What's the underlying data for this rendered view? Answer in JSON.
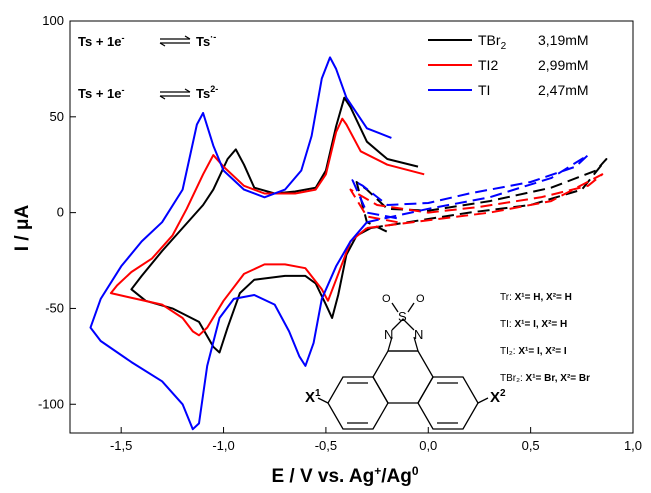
{
  "chart_data": {
    "type": "line",
    "title": "",
    "xlabel": "E / V vs. Ag+/Ag0",
    "xlabel_parts": {
      "pre": "E / V vs. Ag",
      "sup1": "+",
      "mid": "/Ag",
      "sup2": "0"
    },
    "ylabel": "I / μA",
    "xlim": [
      -1.75,
      1.0
    ],
    "ylim": [
      -115,
      100
    ],
    "x_ticks": [
      -1.5,
      -1.0,
      -0.5,
      0.0,
      0.5,
      1.0
    ],
    "x_tick_labels": [
      "-1,5",
      "-1,0",
      "-0,5",
      "0,0",
      "0,5",
      "1,0"
    ],
    "y_ticks": [
      -100,
      -50,
      0,
      50,
      100
    ],
    "y_tick_labels": [
      "-100",
      "-50",
      "0",
      "50",
      "100"
    ],
    "legend_position": "top-right",
    "series": [
      {
        "name": "TBr2",
        "legend_name": "TBr",
        "legend_sub": "2",
        "legend_conc": "3,19mM",
        "color": "#000000",
        "solid": [
          [
            -0.05,
            24
          ],
          [
            -0.2,
            28
          ],
          [
            -0.3,
            37
          ],
          [
            -0.38,
            55
          ],
          [
            -0.41,
            60
          ],
          [
            -0.45,
            45
          ],
          [
            -0.5,
            22
          ],
          [
            -0.55,
            13
          ],
          [
            -0.65,
            11
          ],
          [
            -0.75,
            10
          ],
          [
            -0.85,
            13
          ],
          [
            -0.9,
            25
          ],
          [
            -0.94,
            33
          ],
          [
            -0.98,
            28
          ],
          [
            -1.05,
            12
          ],
          [
            -1.1,
            4
          ],
          [
            -1.2,
            -8
          ],
          [
            -1.3,
            -20
          ],
          [
            -1.4,
            -33
          ],
          [
            -1.45,
            -40
          ],
          [
            -1.38,
            -46
          ],
          [
            -1.25,
            -50
          ],
          [
            -1.12,
            -57
          ],
          [
            -1.05,
            -70
          ],
          [
            -1.02,
            -73
          ],
          [
            -0.98,
            -60
          ],
          [
            -0.92,
            -42
          ],
          [
            -0.85,
            -35
          ],
          [
            -0.7,
            -33
          ],
          [
            -0.6,
            -33
          ],
          [
            -0.55,
            -37
          ],
          [
            -0.5,
            -48
          ],
          [
            -0.47,
            -55
          ],
          [
            -0.44,
            -43
          ],
          [
            -0.4,
            -22
          ],
          [
            -0.35,
            -12
          ],
          [
            -0.28,
            -8
          ]
        ],
        "dashed": [
          [
            -0.28,
            -8
          ],
          [
            -0.1,
            -5
          ],
          [
            0.2,
            0
          ],
          [
            0.5,
            4
          ],
          [
            0.75,
            12
          ],
          [
            0.87,
            28
          ],
          [
            0.82,
            22
          ],
          [
            0.6,
            13
          ],
          [
            0.3,
            6
          ],
          [
            0.0,
            1
          ],
          [
            -0.2,
            2
          ],
          [
            -0.3,
            12
          ],
          [
            -0.35,
            16
          ],
          [
            -0.3,
            -5
          ],
          [
            -0.2,
            -10
          ]
        ]
      },
      {
        "name": "TI2",
        "legend_name": "TI2",
        "legend_sub": "",
        "legend_conc": "2,99mM",
        "color": "#ff0000",
        "solid": [
          [
            -0.02,
            20
          ],
          [
            -0.2,
            25
          ],
          [
            -0.33,
            32
          ],
          [
            -0.4,
            46
          ],
          [
            -0.42,
            49
          ],
          [
            -0.45,
            42
          ],
          [
            -0.5,
            20
          ],
          [
            -0.55,
            12
          ],
          [
            -0.65,
            10
          ],
          [
            -0.8,
            10
          ],
          [
            -0.9,
            14
          ],
          [
            -1.0,
            24
          ],
          [
            -1.05,
            30
          ],
          [
            -1.1,
            20
          ],
          [
            -1.18,
            2
          ],
          [
            -1.25,
            -12
          ],
          [
            -1.35,
            -24
          ],
          [
            -1.45,
            -31
          ],
          [
            -1.52,
            -38
          ],
          [
            -1.55,
            -42
          ],
          [
            -1.47,
            -44
          ],
          [
            -1.3,
            -48
          ],
          [
            -1.2,
            -55
          ],
          [
            -1.15,
            -62
          ],
          [
            -1.12,
            -64
          ],
          [
            -1.08,
            -60
          ],
          [
            -1.0,
            -46
          ],
          [
            -0.9,
            -32
          ],
          [
            -0.8,
            -27
          ],
          [
            -0.7,
            -27
          ],
          [
            -0.6,
            -29
          ],
          [
            -0.52,
            -40
          ],
          [
            -0.49,
            -46
          ],
          [
            -0.45,
            -35
          ],
          [
            -0.38,
            -15
          ],
          [
            -0.3,
            -8
          ]
        ],
        "dashed": [
          [
            -0.3,
            -8
          ],
          [
            0.0,
            -4
          ],
          [
            0.3,
            0
          ],
          [
            0.6,
            6
          ],
          [
            0.85,
            20
          ],
          [
            0.78,
            14
          ],
          [
            0.55,
            8
          ],
          [
            0.25,
            3
          ],
          [
            0.0,
            0
          ],
          [
            -0.25,
            4
          ],
          [
            -0.38,
            12
          ],
          [
            -0.3,
            -2
          ],
          [
            -0.15,
            -5
          ]
        ]
      },
      {
        "name": "TI",
        "legend_name": "TI",
        "legend_sub": "",
        "legend_conc": "2,47mM",
        "color": "#0000ff",
        "solid": [
          [
            -0.18,
            39
          ],
          [
            -0.3,
            44
          ],
          [
            -0.4,
            60
          ],
          [
            -0.45,
            75
          ],
          [
            -0.48,
            81
          ],
          [
            -0.52,
            70
          ],
          [
            -0.57,
            40
          ],
          [
            -0.62,
            22
          ],
          [
            -0.7,
            12
          ],
          [
            -0.8,
            8
          ],
          [
            -0.9,
            12
          ],
          [
            -1.0,
            22
          ],
          [
            -1.05,
            35
          ],
          [
            -1.1,
            52
          ],
          [
            -1.13,
            46
          ],
          [
            -1.2,
            12
          ],
          [
            -1.3,
            -5
          ],
          [
            -1.4,
            -15
          ],
          [
            -1.5,
            -28
          ],
          [
            -1.6,
            -45
          ],
          [
            -1.65,
            -60
          ],
          [
            -1.6,
            -67
          ],
          [
            -1.45,
            -78
          ],
          [
            -1.3,
            -88
          ],
          [
            -1.2,
            -100
          ],
          [
            -1.15,
            -113
          ],
          [
            -1.12,
            -110
          ],
          [
            -1.08,
            -80
          ],
          [
            -1.02,
            -55
          ],
          [
            -0.95,
            -45
          ],
          [
            -0.85,
            -43
          ],
          [
            -0.75,
            -48
          ],
          [
            -0.68,
            -62
          ],
          [
            -0.63,
            -75
          ],
          [
            -0.6,
            -80
          ],
          [
            -0.56,
            -68
          ],
          [
            -0.52,
            -45
          ],
          [
            -0.45,
            -28
          ],
          [
            -0.38,
            -15
          ],
          [
            -0.3,
            -5
          ]
        ],
        "dashed": [
          [
            -0.3,
            -5
          ],
          [
            0.0,
            2
          ],
          [
            0.3,
            8
          ],
          [
            0.6,
            18
          ],
          [
            0.78,
            30
          ],
          [
            0.72,
            24
          ],
          [
            0.5,
            16
          ],
          [
            0.2,
            10
          ],
          [
            0.0,
            5
          ],
          [
            -0.2,
            4
          ],
          [
            -0.32,
            14
          ],
          [
            -0.37,
            17
          ],
          [
            -0.3,
            0
          ],
          [
            -0.15,
            -3
          ]
        ]
      }
    ]
  },
  "annotations": {
    "reaction1_left": "Ts + 1e",
    "reaction1_left_sup": "-",
    "reaction1_right": "Ts",
    "reaction1_right_sup": "·-",
    "reaction2_left": "Ts + 1e",
    "reaction2_left_sup": "-",
    "reaction2_right": "Ts",
    "reaction2_right_sup": "2-"
  },
  "structure": {
    "o1": "O",
    "o2": "O",
    "s": "S",
    "n1": "N",
    "n2": "N",
    "x1": "X",
    "x1_sup": "1",
    "x2": "X",
    "x2_sup": "2"
  },
  "substituents": [
    {
      "abbr": "Tr:",
      "text": "X¹= H, X²= H"
    },
    {
      "abbr": "TI:",
      "text": "X¹= I, X²= H"
    },
    {
      "abbr": "TI₂:",
      "text": "X¹= I, X²= I"
    },
    {
      "abbr": "TBr₂:",
      "text": "X¹= Br, X²= Br"
    }
  ]
}
